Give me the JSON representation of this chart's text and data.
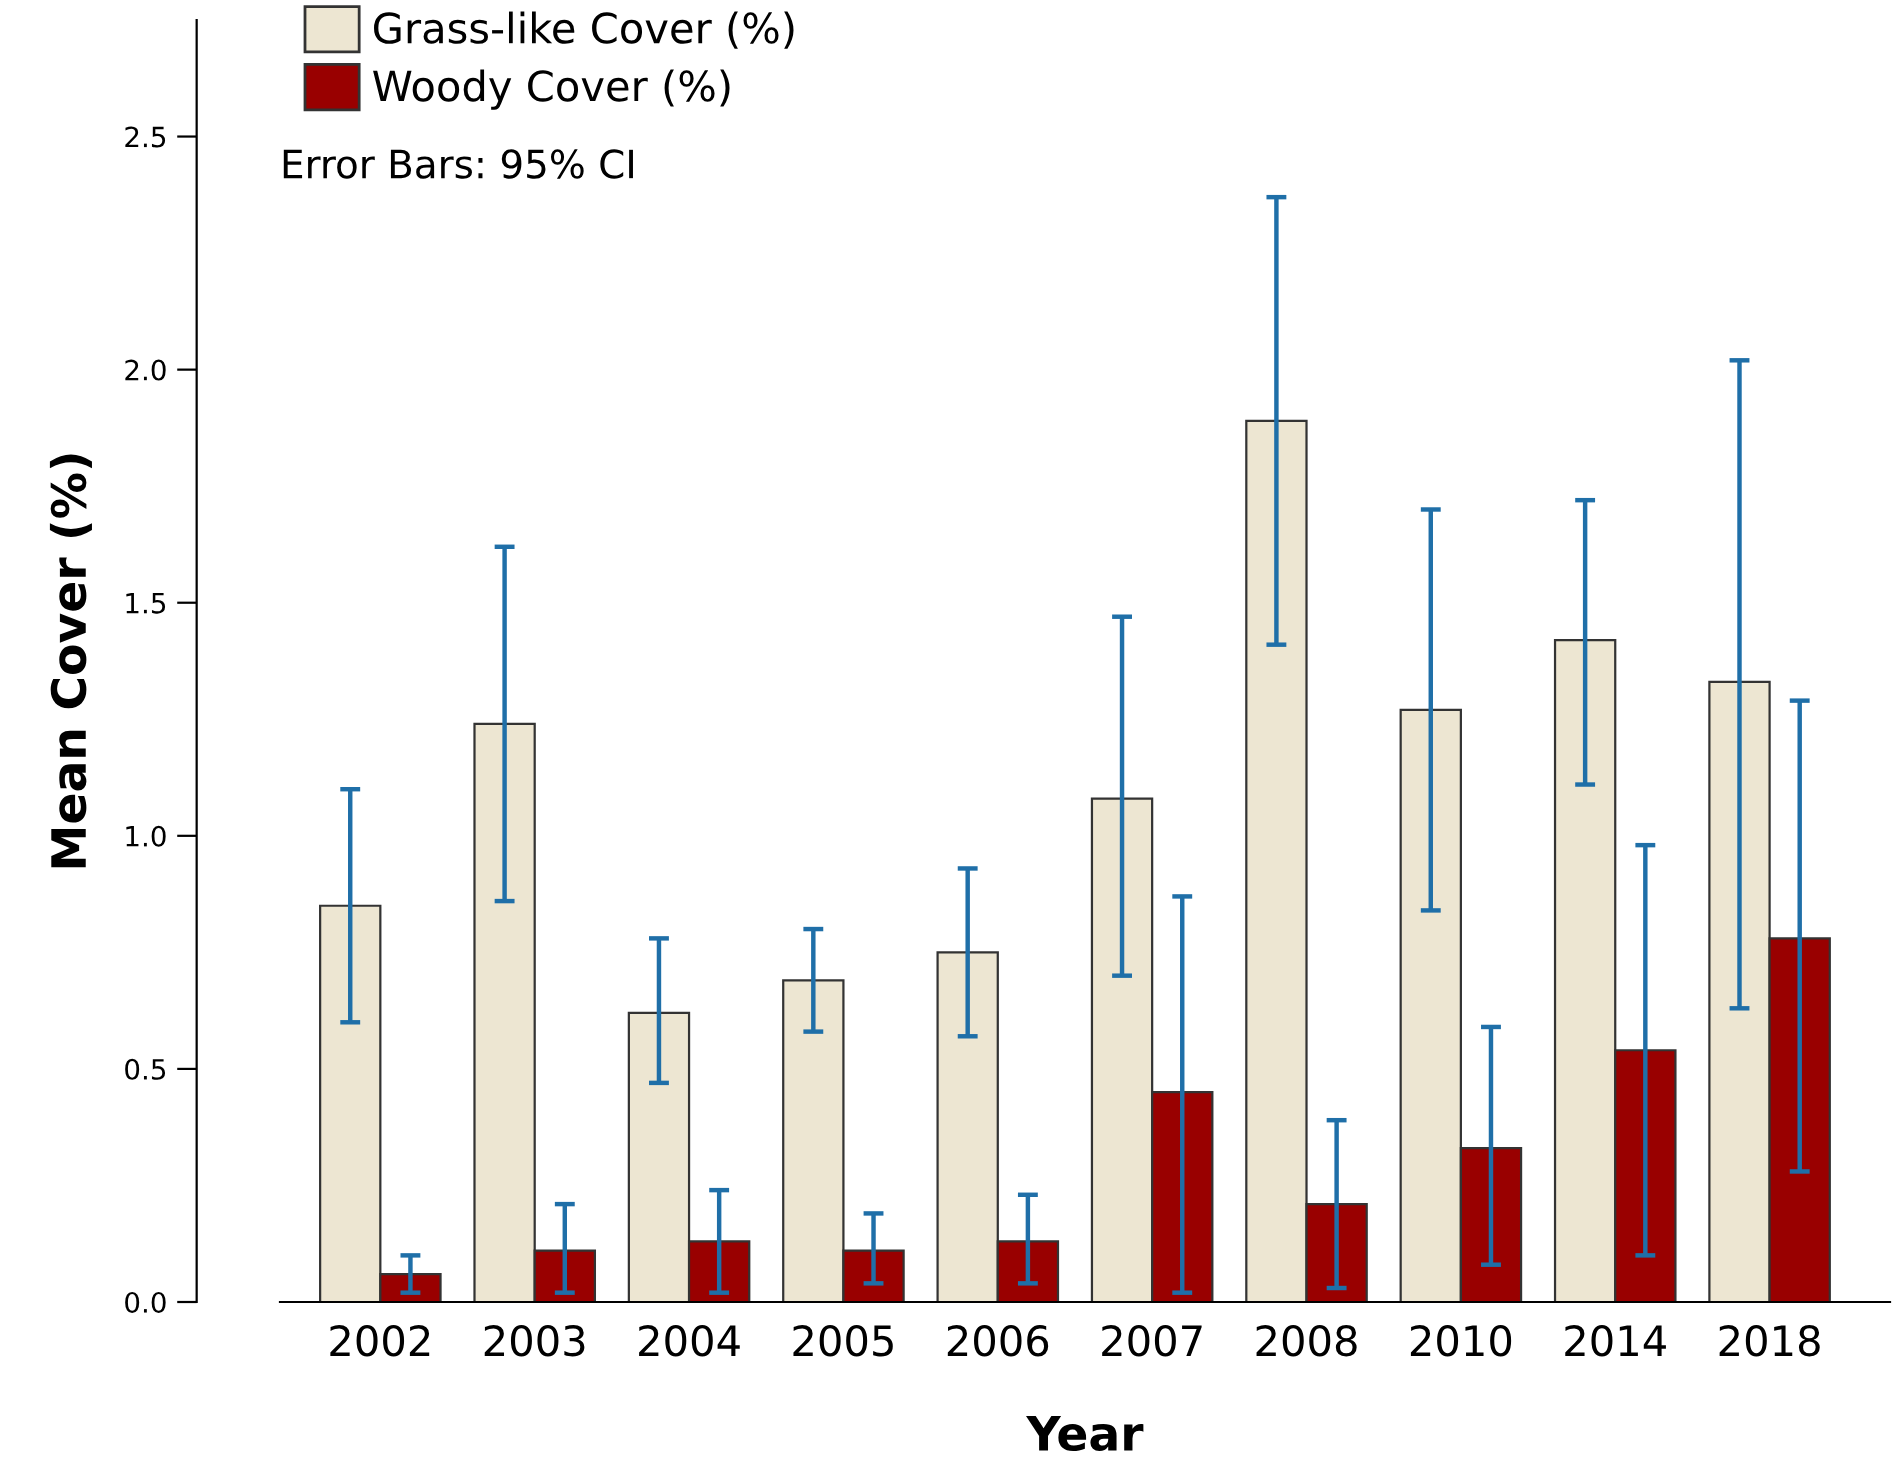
{
  "chart_data": {
    "type": "bar",
    "xlabel": "Year",
    "ylabel": "Mean Cover (%)",
    "categories": [
      "2002",
      "2003",
      "2004",
      "2005",
      "2006",
      "2007",
      "2008",
      "2010",
      "2014",
      "2018"
    ],
    "series": [
      {
        "name": "Grass-like Cover (%)",
        "color": "#ede6d2",
        "values": [
          0.85,
          1.24,
          0.62,
          0.69,
          0.75,
          1.08,
          1.89,
          1.27,
          1.42,
          1.33
        ],
        "errors": [
          [
            0.6,
            1.1
          ],
          [
            0.86,
            1.62
          ],
          [
            0.47,
            0.78
          ],
          [
            0.58,
            0.8
          ],
          [
            0.57,
            0.93
          ],
          [
            0.7,
            1.47
          ],
          [
            1.41,
            2.37
          ],
          [
            0.84,
            1.7
          ],
          [
            1.11,
            1.72
          ],
          [
            0.63,
            2.02
          ]
        ]
      },
      {
        "name": "Woody Cover (%)",
        "color": "#990000",
        "values": [
          0.06,
          0.11,
          0.13,
          0.11,
          0.13,
          0.45,
          0.21,
          0.33,
          0.54,
          0.78
        ],
        "errors": [
          [
            0.02,
            0.1
          ],
          [
            0.02,
            0.21
          ],
          [
            0.02,
            0.24
          ],
          [
            0.04,
            0.19
          ],
          [
            0.04,
            0.23
          ],
          [
            0.02,
            0.87
          ],
          [
            0.03,
            0.39
          ],
          [
            0.08,
            0.59
          ],
          [
            0.1,
            0.98
          ],
          [
            0.28,
            1.29
          ]
        ]
      }
    ],
    "ylim": [
      0,
      2.75
    ],
    "yticks": [
      {
        "value": 0,
        "label": "0.0"
      },
      {
        "value": 0.5,
        "label": "0.5"
      },
      {
        "value": 1,
        "label": "1.0"
      },
      {
        "value": 1.5,
        "label": "1.5"
      },
      {
        "value": 2,
        "label": "2.0"
      },
      {
        "value": 2.5,
        "label": "2.5"
      }
    ],
    "annotations": [
      "Error Bars: 95% CI"
    ],
    "legend": "top left",
    "grid": false
  }
}
